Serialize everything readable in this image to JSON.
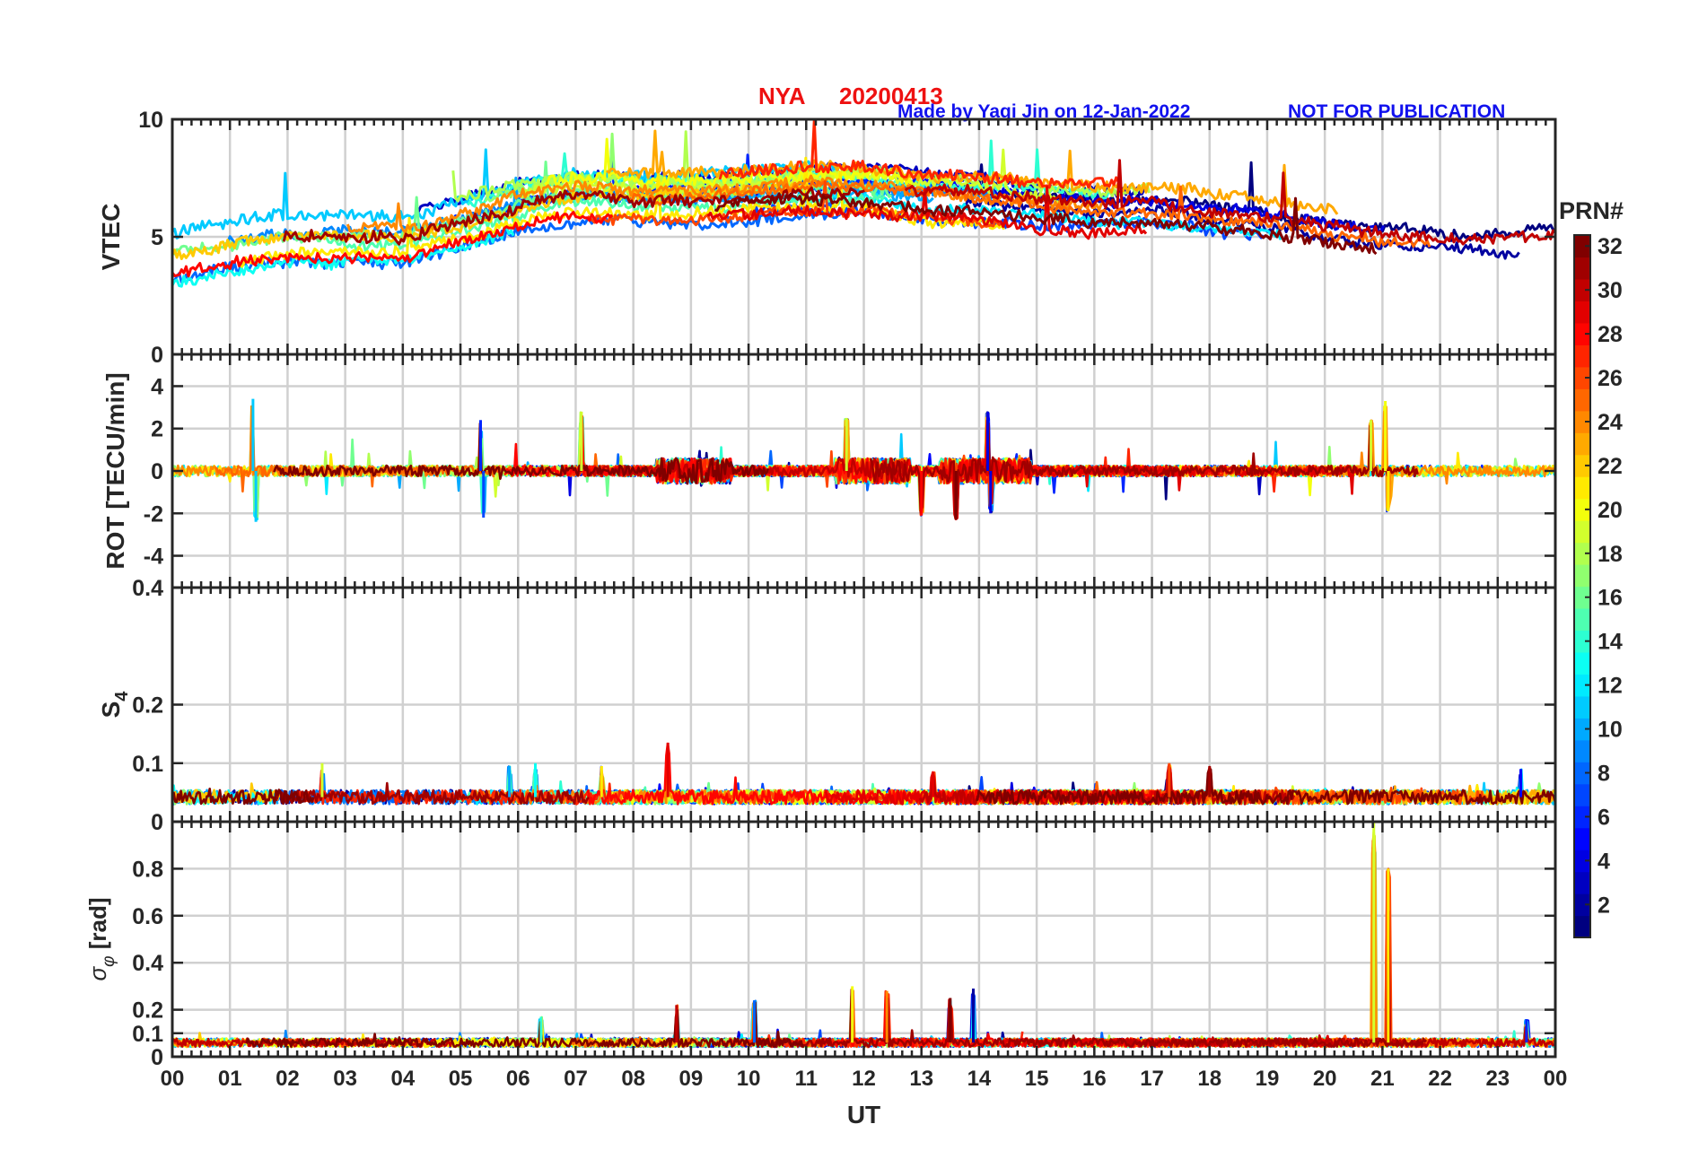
{
  "header": {
    "station": "NYA",
    "date": "20200413",
    "credit": "Made by Yaqi Jin on 12-Jan-2022",
    "notice": "NOT FOR PUBLICATION"
  },
  "colors": {
    "title": "#ee1111",
    "credit": "#1111ee",
    "axis": "#262626",
    "grid": "#d0d0d0"
  },
  "colorbar": {
    "label": "PRN#",
    "colormap": "jet",
    "range": [
      1,
      32
    ],
    "ticks": [
      "2",
      "4",
      "6",
      "8",
      "10",
      "12",
      "14",
      "16",
      "18",
      "20",
      "22",
      "24",
      "26",
      "28",
      "30",
      "32"
    ]
  },
  "chart_data": [
    {
      "type": "line",
      "id": "vtec",
      "ylabel": "VTEC",
      "xlabel": "",
      "xlim": [
        0,
        24
      ],
      "ylim": [
        0,
        10
      ],
      "yticks": [
        0,
        5,
        10
      ],
      "ytick_labels": [
        "0",
        "5",
        "10"
      ],
      "grid": true,
      "series_count": 32,
      "profile": {
        "x": [
          0,
          1,
          2,
          3,
          4,
          5,
          6,
          7,
          8,
          9,
          10,
          11,
          12,
          13,
          14,
          15,
          16,
          17,
          18,
          19,
          20,
          21,
          22,
          23,
          24
        ],
        "y": [
          4.2,
          4.6,
          5.0,
          5.0,
          5.0,
          5.6,
          6.3,
          6.7,
          6.6,
          6.6,
          6.7,
          6.9,
          6.9,
          6.6,
          6.5,
          6.2,
          6.0,
          6.1,
          5.8,
          5.5,
          5.1,
          4.8,
          4.6,
          4.5,
          4.6
        ]
      },
      "noise_amplitude": 0.45,
      "spread": 1.1
    },
    {
      "type": "line",
      "id": "rot",
      "ylabel": "ROT [TECU/min]",
      "xlabel": "",
      "xlim": [
        0,
        24
      ],
      "ylim": [
        -5.5,
        5.5
      ],
      "yticks": [
        -4,
        -2,
        0,
        2,
        4
      ],
      "ytick_labels": [
        "-4",
        "-2",
        "0",
        "2",
        "4"
      ],
      "grid": true,
      "series_count": 32,
      "baseline": 0,
      "noise_amplitude": 0.25,
      "bursts": [
        {
          "x": 1.4,
          "value": 3.4
        },
        {
          "x": 1.45,
          "value": -2.4
        },
        {
          "x": 5.35,
          "value": 2.4
        },
        {
          "x": 5.4,
          "value": -2.2
        },
        {
          "x": 7.1,
          "value": 2.8
        },
        {
          "x": 11.7,
          "value": 2.5
        },
        {
          "x": 13.0,
          "value": -2.1
        },
        {
          "x": 13.6,
          "value": -2.3
        },
        {
          "x": 14.15,
          "value": 2.8
        },
        {
          "x": 14.2,
          "value": -2.0
        },
        {
          "x": 20.8,
          "value": 2.4
        },
        {
          "x": 21.05,
          "value": 3.3
        },
        {
          "x": 21.1,
          "value": -1.9
        }
      ]
    },
    {
      "type": "line",
      "id": "s4",
      "ylabel": "S4",
      "xlabel": "",
      "xlim": [
        0,
        24
      ],
      "ylim": [
        0,
        0.4
      ],
      "yticks": [
        0,
        0.1,
        0.2,
        0.4
      ],
      "ytick_labels": [
        "0",
        "0.1",
        "0.2",
        "0.4"
      ],
      "grid": true,
      "series_count": 32,
      "baseline": 0.042,
      "noise_amplitude": 0.012,
      "bursts": [
        {
          "x": 2.6,
          "value": 0.1
        },
        {
          "x": 5.85,
          "value": 0.095
        },
        {
          "x": 6.3,
          "value": 0.1
        },
        {
          "x": 7.45,
          "value": 0.095
        },
        {
          "x": 8.6,
          "value": 0.135
        },
        {
          "x": 13.2,
          "value": 0.085
        },
        {
          "x": 17.3,
          "value": 0.1
        },
        {
          "x": 18.0,
          "value": 0.095
        },
        {
          "x": 23.4,
          "value": 0.09
        }
      ]
    },
    {
      "type": "line",
      "id": "sigma_phi",
      "ylabel": "σφ [rad]",
      "xlabel": "UT",
      "xlim": [
        0,
        24
      ],
      "ylim": [
        0,
        1.0
      ],
      "yticks": [
        0,
        0.1,
        0.2,
        0.4,
        0.6,
        0.8
      ],
      "ytick_labels": [
        "0",
        "0.1",
        "0.2",
        "0.4",
        "0.6",
        "0.8"
      ],
      "xtick_labels": [
        "00",
        "01",
        "02",
        "03",
        "04",
        "05",
        "06",
        "07",
        "08",
        "09",
        "10",
        "11",
        "12",
        "13",
        "14",
        "15",
        "16",
        "17",
        "18",
        "19",
        "20",
        "21",
        "22",
        "23",
        "00"
      ],
      "grid": true,
      "series_count": 32,
      "baseline": 0.06,
      "noise_amplitude": 0.018,
      "bursts": [
        {
          "x": 6.4,
          "value": 0.17
        },
        {
          "x": 8.75,
          "value": 0.22
        },
        {
          "x": 10.1,
          "value": 0.24
        },
        {
          "x": 11.8,
          "value": 0.3
        },
        {
          "x": 12.4,
          "value": 0.28
        },
        {
          "x": 13.5,
          "value": 0.25
        },
        {
          "x": 13.9,
          "value": 0.29
        },
        {
          "x": 20.85,
          "value": 1.0
        },
        {
          "x": 21.1,
          "value": 0.8
        },
        {
          "x": 23.5,
          "value": 0.16
        }
      ]
    }
  ]
}
